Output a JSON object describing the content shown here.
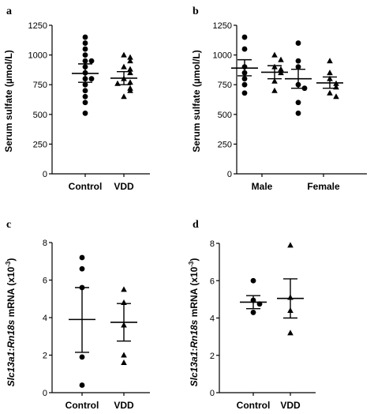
{
  "chart_data": [
    {
      "panel": "a",
      "type": "scatter",
      "ylabel": "Serum sulfate (µmol/L)",
      "ylim": [
        0,
        1250
      ],
      "yticks": [
        0,
        250,
        500,
        750,
        1000,
        1250
      ],
      "categories": [
        "Control",
        "VDD"
      ],
      "series": [
        {
          "category": "Control",
          "marker": "circle",
          "values": [
            1150,
            1100,
            1050,
            1000,
            950,
            950,
            900,
            850,
            800,
            800,
            750,
            700,
            650,
            600,
            510
          ],
          "mean": 845,
          "sem_low": 770,
          "sem_high": 925
        },
        {
          "category": "VDD",
          "marker": "triangle",
          "values": [
            1000,
            980,
            950,
            900,
            880,
            850,
            800,
            770,
            760,
            720,
            700,
            650
          ],
          "mean": 805,
          "sem_low": 750,
          "sem_high": 860
        }
      ]
    },
    {
      "panel": "b",
      "type": "scatter",
      "ylabel": "Serum sulfate (µmol/L)",
      "ylim": [
        0,
        1250
      ],
      "yticks": [
        0,
        250,
        500,
        750,
        1000,
        1250
      ],
      "categories": [
        "Male",
        "Female"
      ],
      "series": [
        {
          "category": "Male",
          "marker": "circle",
          "values": [
            1150,
            1050,
            900,
            850,
            800,
            750,
            680
          ],
          "mean": 890,
          "sem_low": 825,
          "sem_high": 960
        },
        {
          "category": "Male",
          "marker": "triangle",
          "values": [
            1000,
            960,
            900,
            880,
            850,
            780,
            700
          ],
          "mean": 855,
          "sem_low": 800,
          "sem_high": 910
        },
        {
          "category": "Female",
          "marker": "circle",
          "values": [
            1100,
            950,
            900,
            750,
            720,
            600,
            510
          ],
          "mean": 800,
          "sem_low": 720,
          "sem_high": 880
        },
        {
          "category": "Female",
          "marker": "triangle",
          "values": [
            950,
            850,
            800,
            760,
            730,
            680,
            650
          ],
          "mean": 765,
          "sem_low": 720,
          "sem_high": 815
        }
      ]
    },
    {
      "panel": "c",
      "type": "scatter",
      "ylabel_italic_1": "Slc13a1",
      "ylabel_sep": ":",
      "ylabel_italic_2": "Rn18s",
      "ylabel_rest": " mRNA (x10",
      "ylabel_sup": "-3",
      "ylabel_close": ")",
      "ylim": [
        0,
        8
      ],
      "yticks": [
        0,
        2,
        4,
        6,
        8
      ],
      "categories": [
        "Control",
        "VDD"
      ],
      "series": [
        {
          "category": "Control",
          "marker": "circle",
          "values": [
            7.2,
            6.6,
            5.6,
            1.9,
            0.4
          ],
          "mean": 3.9,
          "sem_low": 2.15,
          "sem_high": 5.6
        },
        {
          "category": "VDD",
          "marker": "triangle",
          "values": [
            5.5,
            4.8,
            3.6,
            2.0,
            1.6
          ],
          "mean": 3.75,
          "sem_low": 2.75,
          "sem_high": 4.75
        }
      ]
    },
    {
      "panel": "d",
      "type": "scatter",
      "ylabel_italic_1": "Slc13a1",
      "ylabel_sep": ":",
      "ylabel_italic_2": "Rn18s",
      "ylabel_rest": " mRNA (x10",
      "ylabel_sup": "-3",
      "ylabel_close": ")",
      "ylim": [
        0,
        8
      ],
      "yticks": [
        0,
        2,
        4,
        6,
        8
      ],
      "categories": [
        "Control",
        "VDD"
      ],
      "series": [
        {
          "category": "Control",
          "marker": "circle",
          "values": [
            6.0,
            4.95,
            4.75,
            4.3
          ],
          "mean": 4.85,
          "sem_low": 4.5,
          "sem_high": 5.2
        },
        {
          "category": "VDD",
          "marker": "triangle",
          "values": [
            7.9,
            5.1,
            4.4,
            3.2
          ],
          "mean": 5.05,
          "sem_low": 4.0,
          "sem_high": 6.1
        }
      ]
    }
  ]
}
